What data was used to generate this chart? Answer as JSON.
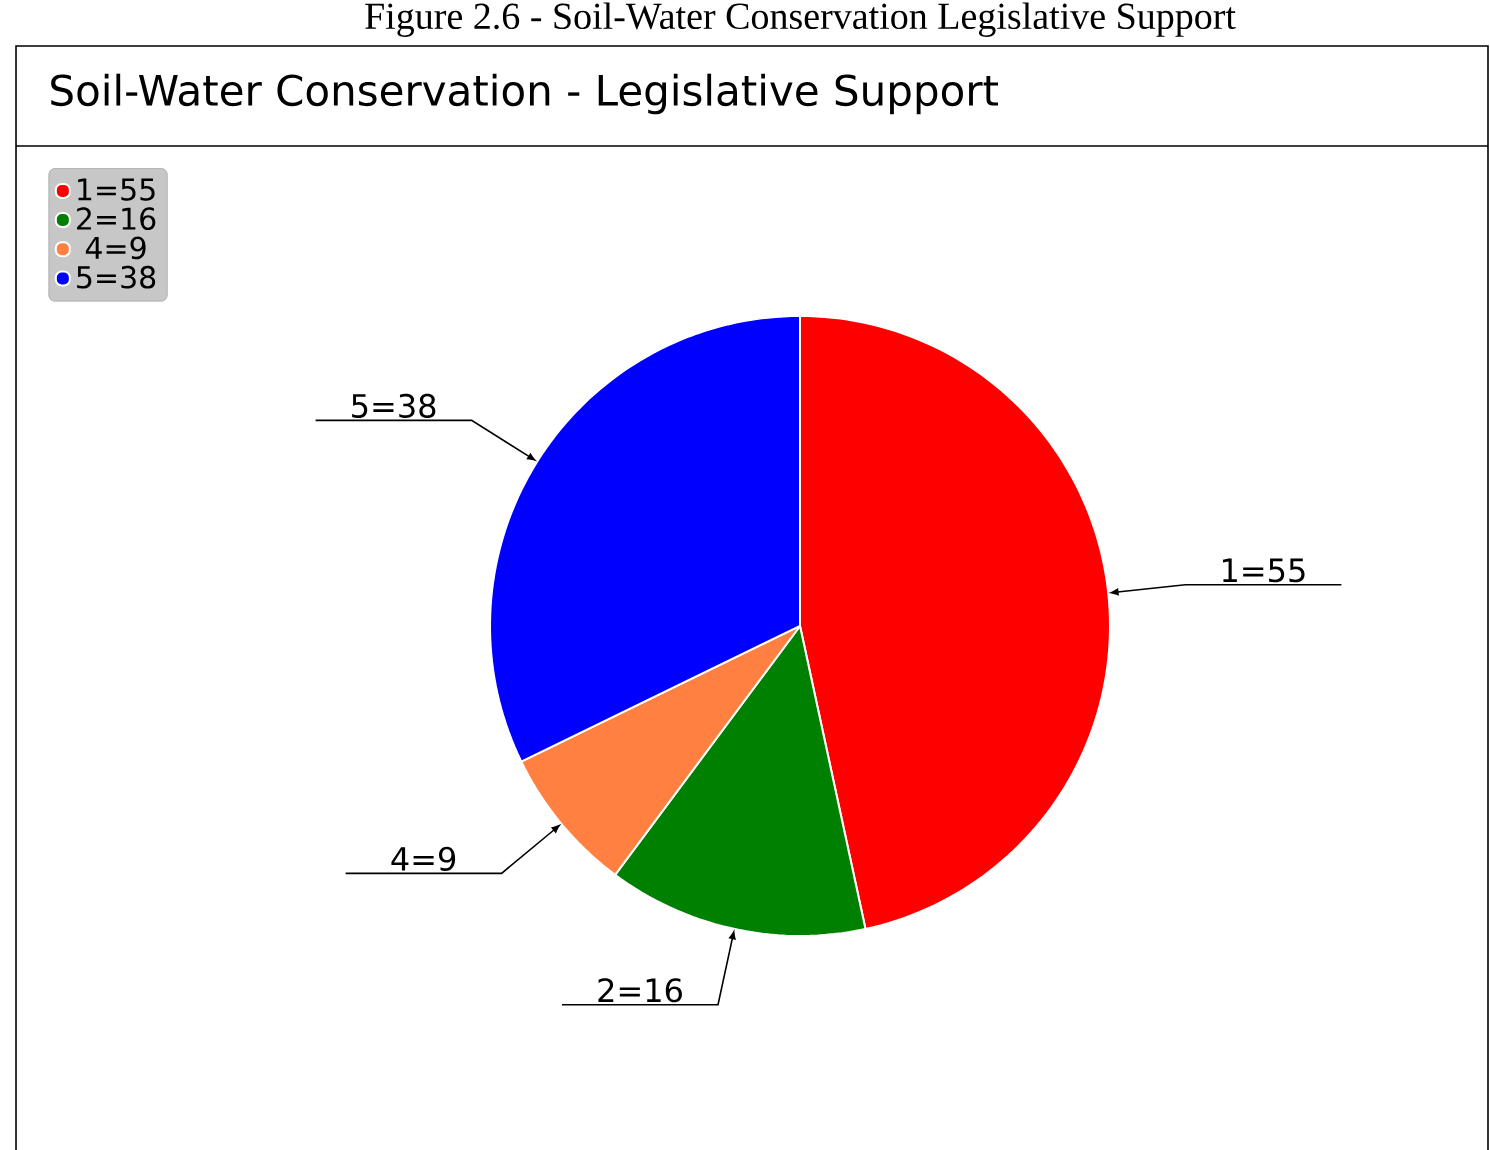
{
  "chart_data": {
    "type": "pie",
    "title": "Soil-Water Conservation - Legislative Support",
    "annotations": [
      "Figure 2.6 - Soil-Water Conservation Legislative Support"
    ],
    "categories": [
      "1=55",
      "2=16",
      "4=9",
      "5=38"
    ],
    "values": [
      55,
      16,
      9,
      38
    ],
    "colors": [
      "#ff0000",
      "#008000",
      "#ff8040",
      "#0000ff"
    ],
    "legend": "top left"
  }
}
